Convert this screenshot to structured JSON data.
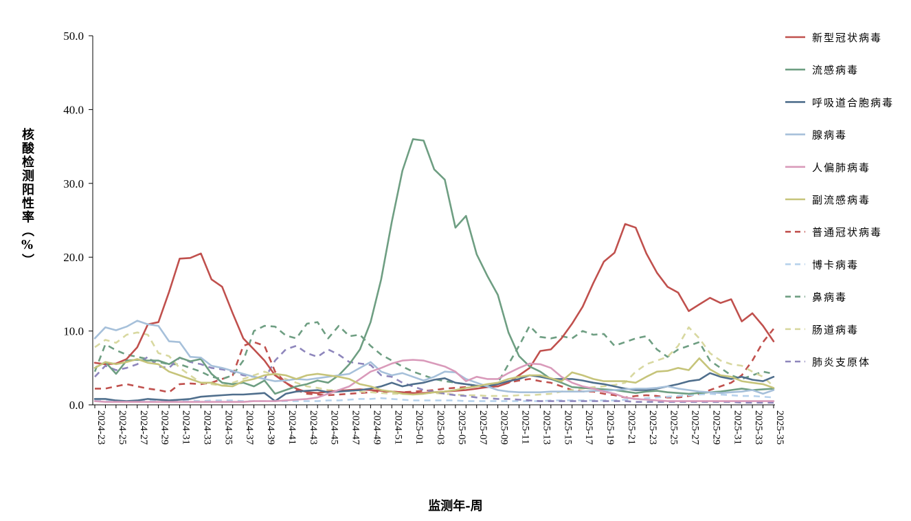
{
  "chart_data": {
    "type": "line",
    "title": "",
    "xlabel": "监测年-周",
    "ylabel": "核酸检测阳性率（%）",
    "ylim": [
      0,
      50
    ],
    "yticks": [
      "0.0",
      "10.0",
      "20.0",
      "30.0",
      "40.0",
      "50.0"
    ],
    "grid": false,
    "legend_position": "right",
    "x": [
      "2024-23",
      "2024-24",
      "2024-25",
      "2024-26",
      "2024-27",
      "2024-28",
      "2024-29",
      "2024-30",
      "2024-31",
      "2024-32",
      "2024-33",
      "2024-34",
      "2024-35",
      "2024-36",
      "2024-37",
      "2024-38",
      "2024-39",
      "2024-40",
      "2024-41",
      "2024-42",
      "2024-43",
      "2024-44",
      "2024-45",
      "2024-46",
      "2024-47",
      "2024-48",
      "2024-49",
      "2024-50",
      "2024-51",
      "2024-52",
      "2025-01",
      "2025-02",
      "2025-03",
      "2025-04",
      "2025-05",
      "2025-06",
      "2025-07",
      "2025-08",
      "2025-09",
      "2025-10",
      "2025-11",
      "2025-12",
      "2025-13",
      "2025-14",
      "2025-15",
      "2025-16",
      "2025-17",
      "2025-18",
      "2025-19",
      "2025-20",
      "2025-21",
      "2025-22",
      "2025-23",
      "2025-24",
      "2025-25",
      "2025-26",
      "2025-27",
      "2025-28",
      "2025-29",
      "2025-30",
      "2025-31",
      "2025-32",
      "2025-33",
      "2025-34",
      "2025-35"
    ],
    "xtick_labels": [
      "2024-23",
      "2024-25",
      "2024-27",
      "2024-29",
      "2024-31",
      "2024-33",
      "2024-35",
      "2024-37",
      "2024-39",
      "2024-41",
      "2024-43",
      "2024-45",
      "2024-47",
      "2024-49",
      "2024-51",
      "2025-01",
      "2025-03",
      "2025-05",
      "2025-07",
      "2025-09",
      "2025-11",
      "2025-13",
      "2025-15",
      "2025-17",
      "2025-19",
      "2025-21",
      "2025-23",
      "2025-25",
      "2025-27",
      "2025-29",
      "2025-31",
      "2025-33",
      "2025-35"
    ],
    "series": [
      {
        "name": "新型冠状病毒",
        "color": "#c0504d",
        "dash": "solid",
        "values": [
          5.7,
          5.5,
          5.6,
          6.2,
          7.8,
          10.9,
          11.2,
          15.3,
          19.8,
          19.9,
          20.5,
          17.0,
          16.0,
          12.4,
          9.0,
          7.5,
          6.0,
          4.0,
          3.0,
          2.2,
          1.7,
          1.6,
          1.8,
          1.9,
          2.0,
          2.1,
          2.0,
          1.9,
          1.8,
          1.7,
          1.6,
          1.6,
          1.7,
          1.8,
          1.9,
          2.0,
          2.2,
          2.4,
          2.5,
          3.0,
          4.0,
          5.0,
          7.3,
          7.5,
          9.0,
          11.0,
          13.3,
          16.5,
          19.4,
          20.6,
          24.5,
          24.0,
          20.5,
          17.9,
          16.0,
          15.2,
          12.7,
          13.6,
          14.5,
          13.8,
          14.3,
          11.3,
          12.4,
          10.7,
          8.6
        ]
      },
      {
        "name": "流感病毒",
        "color": "#6e9e82",
        "dash": "solid",
        "values": [
          5.0,
          5.8,
          4.2,
          6.0,
          6.1,
          6.0,
          6.0,
          5.5,
          6.4,
          5.9,
          6.2,
          4.2,
          3.0,
          2.8,
          3.0,
          2.5,
          3.3,
          1.5,
          2.0,
          2.5,
          2.8,
          3.3,
          3.0,
          4.0,
          5.5,
          7.5,
          11.2,
          17.0,
          24.8,
          31.7,
          36.0,
          35.8,
          31.9,
          30.5,
          24.0,
          25.6,
          20.4,
          17.5,
          14.9,
          9.8,
          6.6,
          5.2,
          4.5,
          3.5,
          3.0,
          2.4,
          2.3,
          2.2,
          2.1,
          2.0,
          1.8,
          1.6,
          1.8,
          1.9,
          1.7,
          1.6,
          1.5,
          1.6,
          1.7,
          1.8,
          2.0,
          2.2,
          2.0,
          2.1,
          2.2
        ]
      },
      {
        "name": "呼吸道合胞病毒",
        "color": "#4f6e8c",
        "dash": "solid",
        "values": [
          0.8,
          0.8,
          0.6,
          0.5,
          0.6,
          0.8,
          0.7,
          0.6,
          0.7,
          0.8,
          1.1,
          1.2,
          1.3,
          1.4,
          1.4,
          1.5,
          1.6,
          0.5,
          1.5,
          1.8,
          1.9,
          2.0,
          1.7,
          1.8,
          1.9,
          2.0,
          2.2,
          2.5,
          3.0,
          2.5,
          2.8,
          3.0,
          3.4,
          3.6,
          3.0,
          2.8,
          2.6,
          2.5,
          2.8,
          3.2,
          3.5,
          4.0,
          3.8,
          3.5,
          3.5,
          3.5,
          3.3,
          3.0,
          2.8,
          2.5,
          2.2,
          2.0,
          2.0,
          2.2,
          2.5,
          2.8,
          3.2,
          3.4,
          4.3,
          3.8,
          3.5,
          3.8,
          3.4,
          3.2,
          3.8
        ]
      },
      {
        "name": "腺病毒",
        "color": "#a6c0da",
        "dash": "solid",
        "values": [
          9.0,
          10.5,
          10.1,
          10.6,
          11.4,
          10.9,
          10.7,
          8.6,
          8.5,
          6.5,
          6.4,
          5.3,
          5.0,
          4.6,
          4.2,
          3.8,
          3.5,
          3.2,
          3.3,
          3.5,
          3.4,
          3.6,
          3.8,
          4.0,
          4.2,
          5.0,
          5.8,
          4.5,
          4.0,
          4.3,
          3.8,
          3.3,
          3.8,
          4.5,
          4.4,
          3.5,
          3.0,
          2.5,
          2.0,
          1.8,
          1.7,
          1.7,
          1.7,
          1.8,
          1.8,
          1.8,
          1.8,
          1.9,
          1.9,
          2.0,
          2.1,
          2.2,
          2.2,
          2.3,
          2.5,
          2.2,
          2.0,
          1.8,
          1.7,
          1.6,
          1.7,
          1.8,
          2.0,
          1.5,
          2.0
        ]
      },
      {
        "name": "人偏肺病毒",
        "color": "#d99aba",
        "dash": "solid",
        "values": [
          0.5,
          0.4,
          0.4,
          0.4,
          0.4,
          0.4,
          0.4,
          0.4,
          0.4,
          0.4,
          0.4,
          0.4,
          0.4,
          0.4,
          0.4,
          0.5,
          0.5,
          0.5,
          0.6,
          0.7,
          0.8,
          1.0,
          1.5,
          2.0,
          2.5,
          3.5,
          4.5,
          5.0,
          5.6,
          6.0,
          6.1,
          6.0,
          5.6,
          5.2,
          4.5,
          3.2,
          3.8,
          3.5,
          3.5,
          4.3,
          5.0,
          5.6,
          5.5,
          5.0,
          3.8,
          3.0,
          2.5,
          2.2,
          1.8,
          1.5,
          1.0,
          0.8,
          0.7,
          0.6,
          0.5,
          0.5,
          0.5,
          0.5,
          0.5,
          0.5,
          0.5,
          0.5,
          0.5,
          0.5,
          0.5
        ]
      },
      {
        "name": "副流感病毒",
        "color": "#c6c47a",
        "dash": "solid",
        "values": [
          5.0,
          5.8,
          5.5,
          5.8,
          6.2,
          5.7,
          5.5,
          4.5,
          4.0,
          3.5,
          3.0,
          3.0,
          2.6,
          2.5,
          3.2,
          3.5,
          4.0,
          4.2,
          4.0,
          3.5,
          4.0,
          4.2,
          4.0,
          3.8,
          3.5,
          2.8,
          2.5,
          2.0,
          1.8,
          1.5,
          1.4,
          1.5,
          1.7,
          1.8,
          2.0,
          2.3,
          2.5,
          2.8,
          3.0,
          3.5,
          3.8,
          4.0,
          4.0,
          3.6,
          3.2,
          4.4,
          4.0,
          3.5,
          3.2,
          3.2,
          3.2,
          3.0,
          3.8,
          4.5,
          4.6,
          5.0,
          4.7,
          6.3,
          4.8,
          4.0,
          3.8,
          3.2,
          3.0,
          2.8,
          2.3
        ]
      },
      {
        "name": "普通冠状病毒",
        "color": "#c0504d",
        "dash": "dash",
        "values": [
          2.2,
          2.2,
          2.5,
          2.8,
          2.5,
          2.2,
          2.0,
          1.7,
          2.8,
          2.9,
          2.8,
          3.0,
          3.5,
          4.0,
          8.0,
          8.5,
          8.0,
          4.5,
          3.0,
          2.0,
          1.5,
          1.4,
          1.3,
          1.4,
          1.5,
          1.6,
          1.7,
          1.8,
          1.8,
          1.7,
          1.8,
          1.9,
          2.0,
          2.2,
          2.3,
          2.4,
          2.5,
          2.5,
          2.5,
          3.0,
          3.3,
          3.5,
          3.2,
          3.0,
          2.5,
          2.0,
          1.8,
          1.8,
          1.5,
          1.3,
          1.0,
          1.2,
          1.3,
          1.2,
          1.0,
          1.0,
          1.2,
          1.5,
          2.0,
          2.5,
          3.0,
          4.0,
          6.0,
          8.5,
          10.3
        ]
      },
      {
        "name": "博卡病毒",
        "color": "#b7d2ec",
        "dash": "dash",
        "values": [
          0.6,
          0.5,
          0.5,
          0.5,
          0.5,
          0.6,
          0.5,
          0.5,
          0.6,
          0.6,
          0.5,
          0.6,
          0.6,
          0.6,
          0.5,
          0.5,
          0.5,
          0.5,
          0.5,
          0.5,
          0.5,
          0.5,
          0.6,
          0.6,
          0.7,
          0.8,
          0.8,
          0.9,
          0.8,
          0.7,
          0.6,
          0.6,
          0.6,
          0.6,
          0.6,
          0.5,
          0.5,
          0.5,
          0.5,
          0.5,
          0.5,
          0.5,
          0.5,
          0.6,
          0.6,
          0.6,
          0.6,
          0.6,
          0.6,
          0.6,
          0.7,
          0.8,
          0.9,
          1.0,
          1.1,
          1.2,
          1.3,
          1.4,
          1.5,
          1.4,
          1.3,
          1.2,
          1.2,
          1.1,
          1.0
        ]
      },
      {
        "name": "鼻病毒",
        "color": "#6e9e82",
        "dash": "dash",
        "values": [
          4.5,
          8.2,
          7.4,
          6.8,
          6.5,
          6.2,
          5.8,
          5.5,
          5.5,
          5.0,
          4.5,
          3.8,
          3.5,
          4.0,
          6.0,
          10.0,
          10.7,
          10.6,
          9.4,
          9.0,
          11.0,
          11.2,
          9.0,
          10.7,
          9.3,
          9.5,
          8.0,
          6.8,
          6.0,
          5.2,
          4.5,
          4.0,
          3.5,
          3.2,
          3.0,
          2.8,
          2.6,
          2.5,
          3.0,
          5.5,
          8.0,
          10.7,
          9.2,
          9.0,
          9.3,
          9.0,
          10.0,
          9.5,
          9.6,
          8.0,
          8.5,
          9.0,
          9.3,
          7.5,
          6.5,
          7.5,
          8.0,
          8.5,
          6.0,
          5.0,
          4.0,
          3.5,
          4.0,
          4.5,
          4.2
        ]
      },
      {
        "name": "肠道病毒",
        "color": "#d8d8a0",
        "dash": "dash",
        "values": [
          7.8,
          8.8,
          8.4,
          9.5,
          9.8,
          9.5,
          7.0,
          6.6,
          5.0,
          4.0,
          3.0,
          2.8,
          2.6,
          3.0,
          3.5,
          4.0,
          4.5,
          4.0,
          3.5,
          3.0,
          2.5,
          2.3,
          2.0,
          2.0,
          2.0,
          1.8,
          1.7,
          1.6,
          1.5,
          1.5,
          1.5,
          1.6,
          1.6,
          1.5,
          1.4,
          1.3,
          1.3,
          1.2,
          1.2,
          1.2,
          1.3,
          1.3,
          1.4,
          1.5,
          1.8,
          2.0,
          2.2,
          2.4,
          2.5,
          2.7,
          3.0,
          4.5,
          5.5,
          6.0,
          6.5,
          8.0,
          10.5,
          9.0,
          7.0,
          6.0,
          5.5,
          5.3,
          4.5,
          3.8,
          2.5
        ]
      },
      {
        "name": "肺炎支原体",
        "color": "#8e86bc",
        "dash": "dash",
        "values": [
          3.8,
          5.3,
          4.7,
          5.0,
          5.5,
          6.5,
          5.2,
          5.0,
          6.4,
          5.8,
          5.5,
          5.0,
          4.8,
          4.5,
          4.0,
          3.8,
          3.5,
          6.0,
          7.5,
          8.0,
          7.0,
          6.5,
          7.5,
          6.8,
          5.8,
          5.6,
          5.4,
          4.0,
          3.8,
          3.0,
          2.5,
          2.0,
          1.8,
          1.5,
          1.3,
          1.2,
          1.0,
          0.9,
          0.8,
          0.8,
          0.7,
          0.6,
          0.5,
          0.5,
          0.5,
          0.5,
          0.5,
          0.5,
          0.5,
          0.5,
          0.5,
          0.4,
          0.4,
          0.4,
          0.4,
          0.4,
          0.4,
          0.4,
          0.4,
          0.4,
          0.4,
          0.3,
          0.3,
          0.3,
          0.3
        ]
      }
    ]
  }
}
